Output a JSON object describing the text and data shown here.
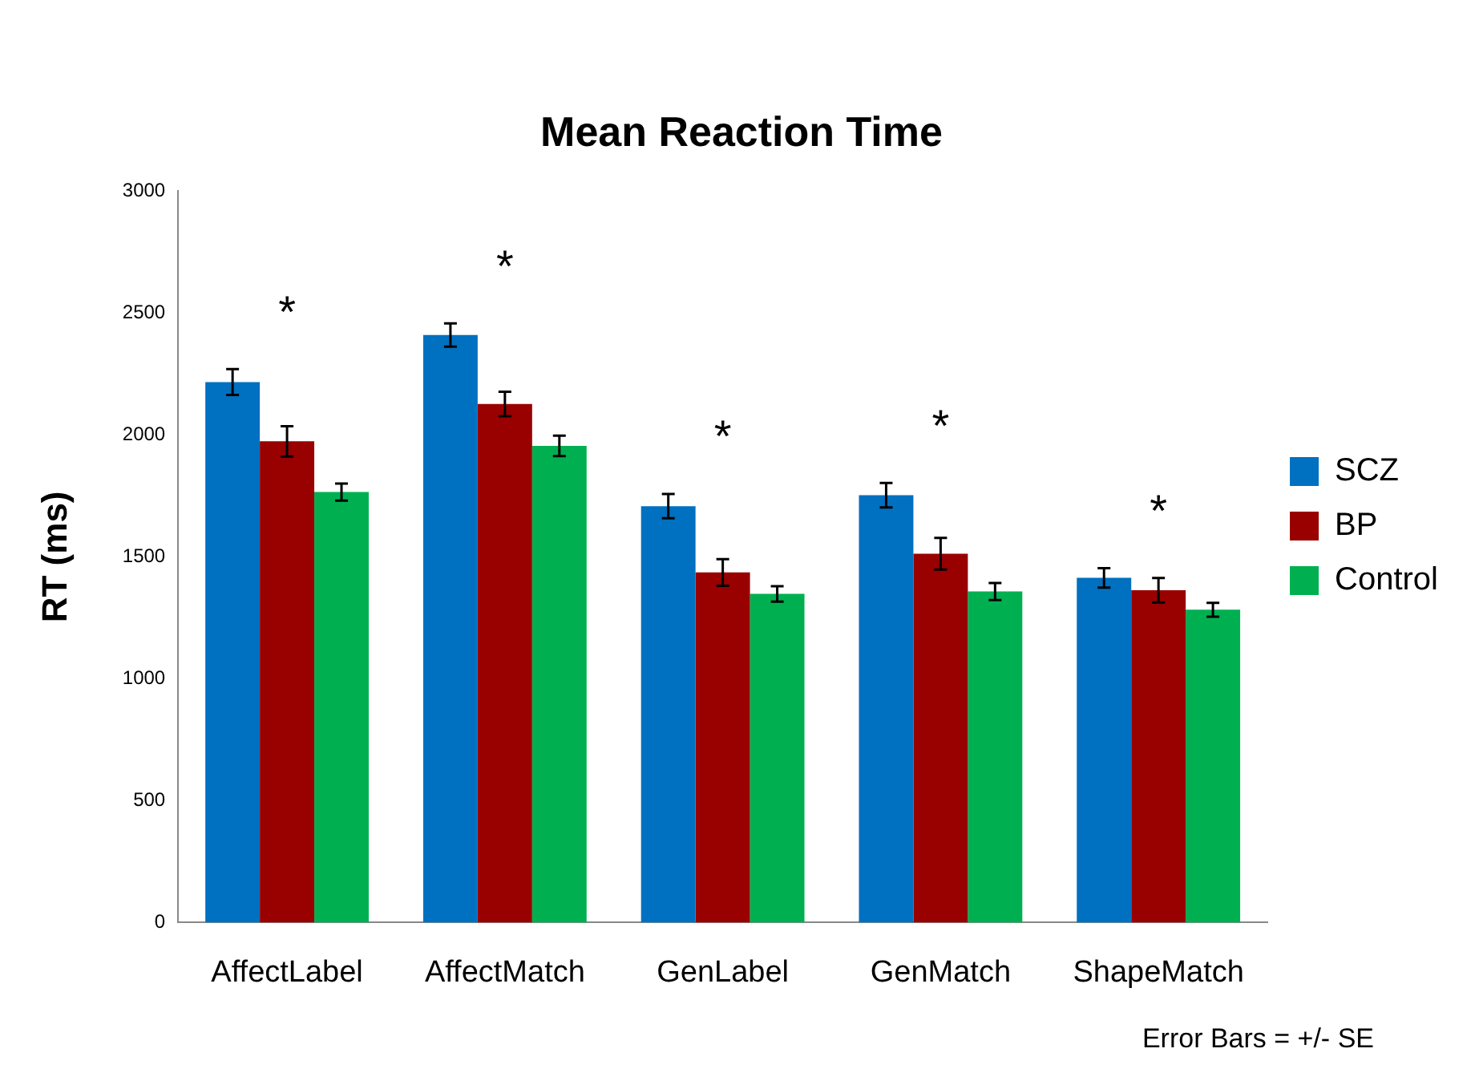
{
  "chart_data": {
    "type": "bar",
    "title": "Mean Reaction Time",
    "ylabel": "RT (ms)",
    "categories": [
      "AffectLabel",
      "AffectMatch",
      "GenLabel",
      "GenMatch",
      "ShapeMatch"
    ],
    "series": [
      {
        "name": "SCZ",
        "color": "#0070c0",
        "values": [
          2217,
          2410,
          1708,
          1753,
          1414
        ],
        "errors": [
          53,
          48,
          50,
          50,
          40
        ]
      },
      {
        "name": "BP",
        "color": "#990000",
        "values": [
          1974,
          2127,
          1436,
          1513,
          1363
        ],
        "errors": [
          62,
          50,
          55,
          65,
          50
        ]
      },
      {
        "name": "Control",
        "color": "#00b050",
        "values": [
          1766,
          1955,
          1348,
          1358,
          1283
        ],
        "errors": [
          35,
          42,
          32,
          35,
          28
        ]
      }
    ],
    "ylim": [
      0,
      3000
    ],
    "yticks": [
      0,
      500,
      1000,
      1500,
      2000,
      2500,
      3000
    ],
    "grid": false,
    "legend": "right",
    "annotations": [
      "*",
      "*",
      "*",
      "*",
      "*",
      "Error Bars = +/- SE"
    ]
  }
}
